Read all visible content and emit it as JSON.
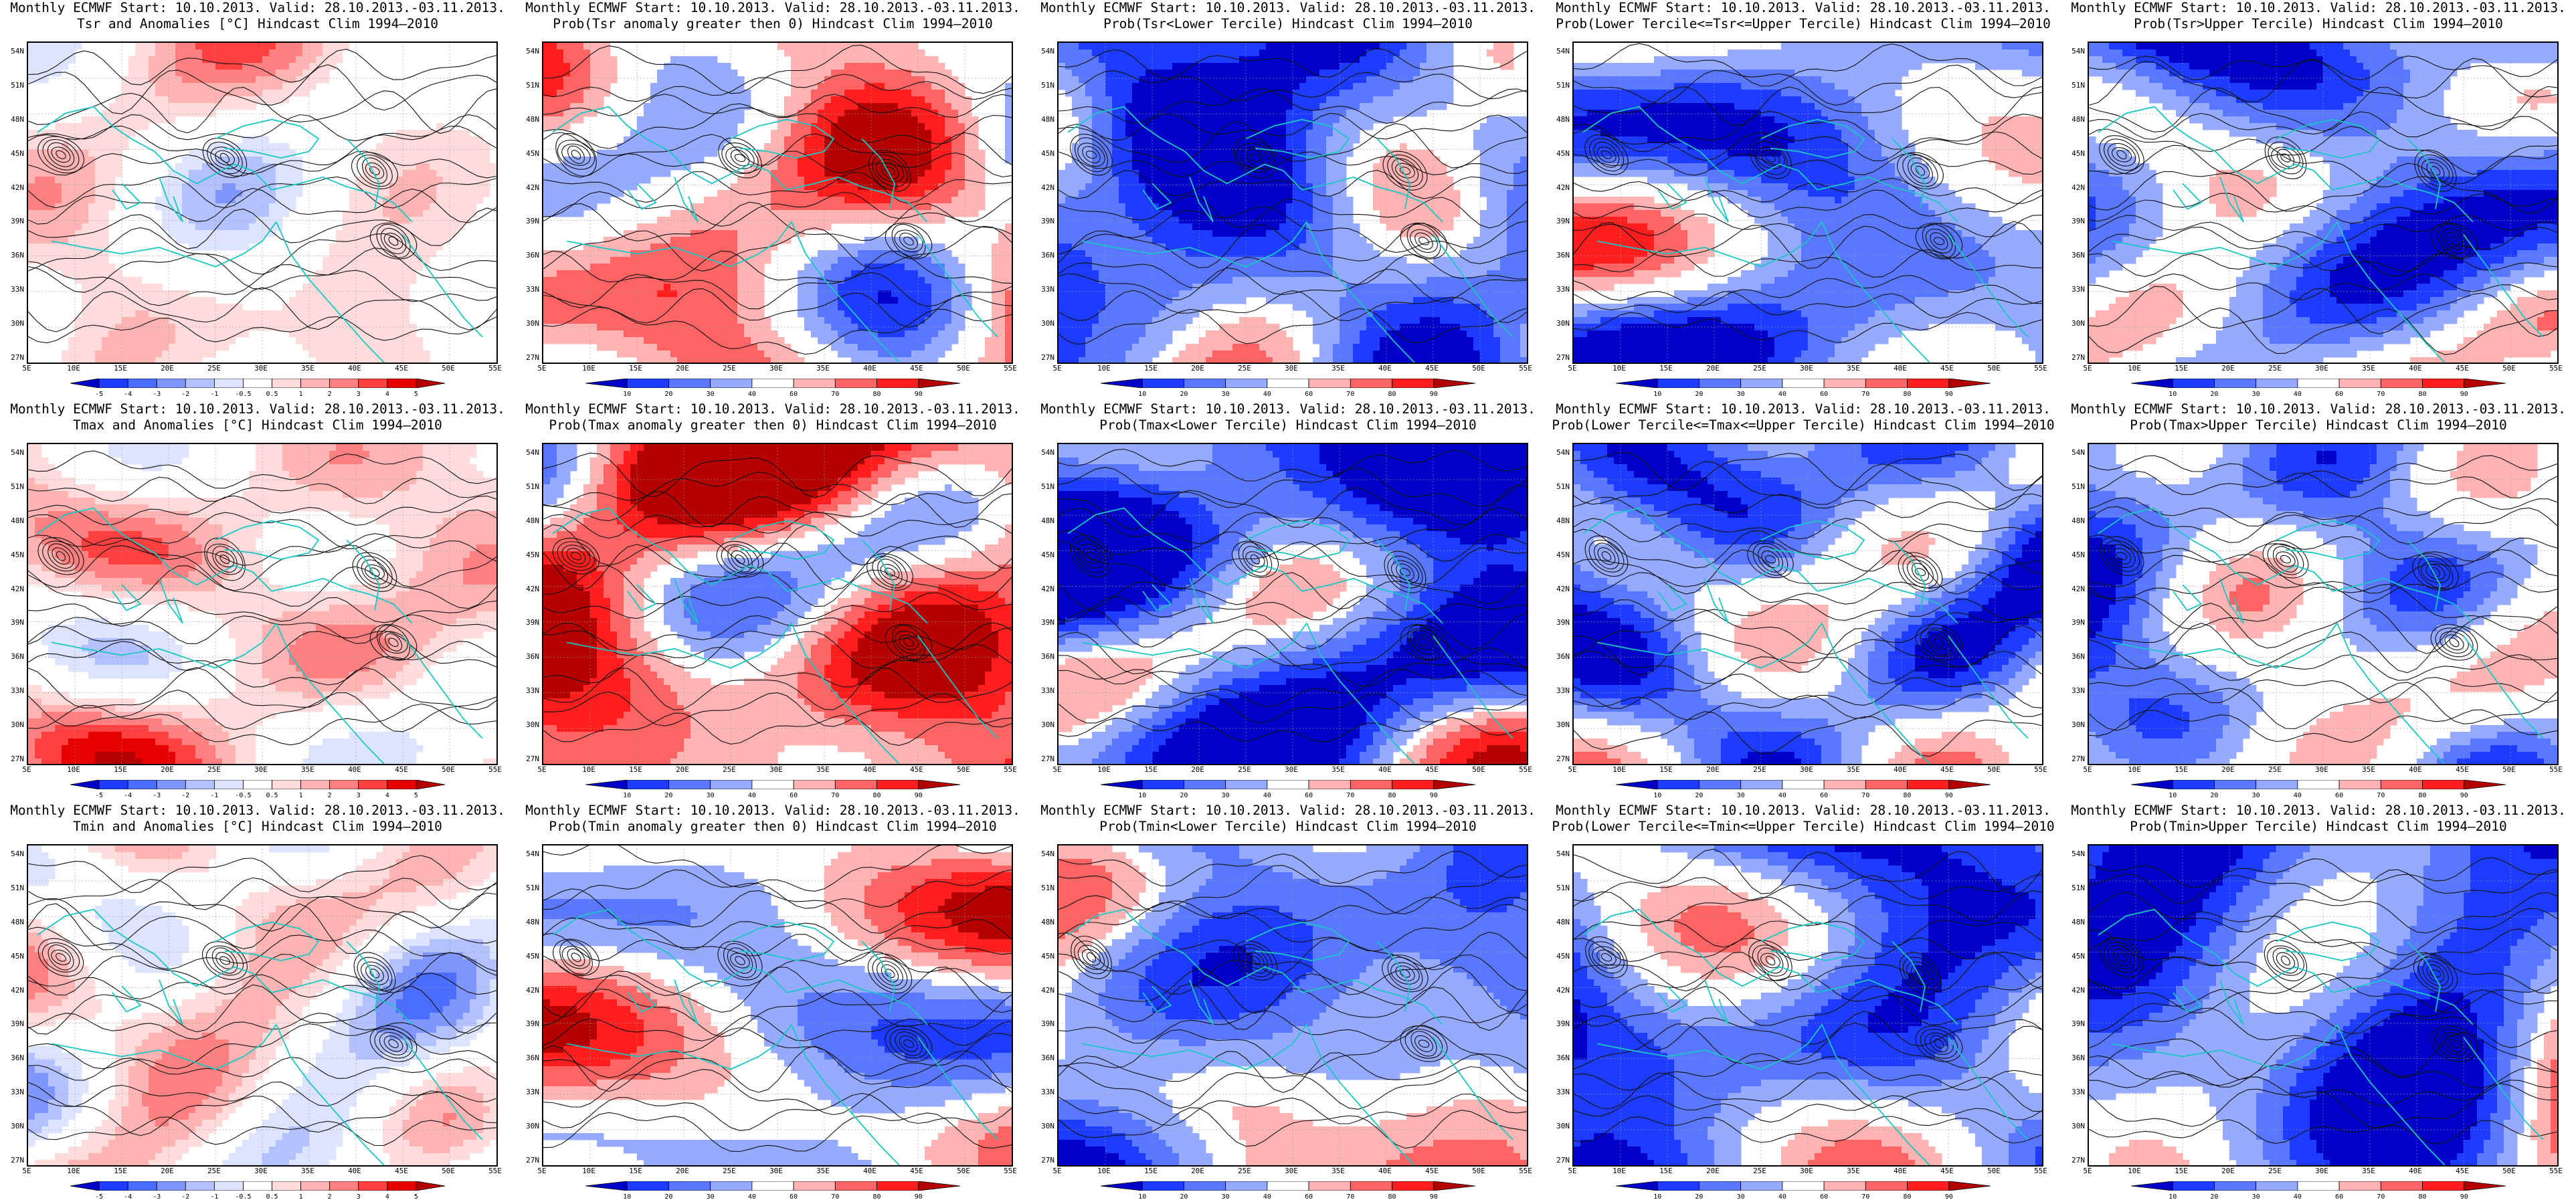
{
  "header_line": "Monthly ECMWF Start: 10.10.2013. Valid: 28.10.2013.-03.11.2013.",
  "lat_labels": [
    "54N",
    "51N",
    "48N",
    "45N",
    "42N",
    "39N",
    "36N",
    "33N",
    "30N",
    "27N"
  ],
  "lon_labels": [
    "5E",
    "10E",
    "15E",
    "20E",
    "25E",
    "30E",
    "35E",
    "40E",
    "45E",
    "50E",
    "55E"
  ],
  "scales": {
    "anom": {
      "labels": [
        "-5",
        "-4",
        "-3",
        "-2",
        "-1",
        "-0.5",
        "0.5",
        "1",
        "2",
        "3",
        "4",
        "5"
      ],
      "colors": [
        "#0000c8",
        "#1e3cff",
        "#4a6cff",
        "#7f96ff",
        "#b3c2ff",
        "#dde4ff",
        "#ffffff",
        "#ffdcdc",
        "#ffb4b4",
        "#ff8080",
        "#ff4040",
        "#e60000",
        "#b40000"
      ]
    },
    "prob": {
      "labels": [
        "10",
        "20",
        "30",
        "40",
        "60",
        "70",
        "80",
        "90"
      ],
      "colors": [
        "#0000c8",
        "#1e3cff",
        "#5a78ff",
        "#96aaff",
        "#ffffff",
        "#ffb4b4",
        "#ff6464",
        "#ff1e1e",
        "#b40000"
      ]
    }
  },
  "rows": [
    {
      "variable": "Tsr",
      "panels": [
        {
          "title2": "Tsr and Anomalies [°C] Hindcast Clim 1994–2010",
          "scale": "anom",
          "coverage": 0.45,
          "bias": 0.25
        },
        {
          "title2": "Prob(Tsr anomaly greater then 0) Hindcast Clim 1994–2010",
          "scale": "prob",
          "coverage": 0.65,
          "bias": 0.3
        },
        {
          "title2": "Prob(Tsr<Lower Tercile) Hindcast Clim 1994–2010",
          "scale": "prob",
          "coverage": 0.8,
          "bias": -0.7
        },
        {
          "title2": "Prob(Lower Tercile<=Tsr<=Upper Tercile) Hindcast Clim 1994–2010",
          "scale": "prob",
          "coverage": 0.6,
          "bias": -0.6
        },
        {
          "title2": "Prob(Tsr>Upper Tercile) Hindcast Clim 1994–2010",
          "scale": "prob",
          "coverage": 0.75,
          "bias": -0.55
        }
      ]
    },
    {
      "variable": "Tmax",
      "panels": [
        {
          "title2": "Tmax and Anomalies [°C] Hindcast Clim 1994–2010",
          "scale": "anom",
          "coverage": 0.5,
          "bias": 0.55
        },
        {
          "title2": "Prob(Tmax anomaly greater then 0) Hindcast Clim 1994–2010",
          "scale": "prob",
          "coverage": 0.75,
          "bias": 0.7
        },
        {
          "title2": "Prob(Tmax<Lower Tercile) Hindcast Clim 1994–2010",
          "scale": "prob",
          "coverage": 0.85,
          "bias": -0.85
        },
        {
          "title2": "Prob(Lower Tercile<=Tmax<=Upper Tercile) Hindcast Clim 1994–2010",
          "scale": "prob",
          "coverage": 0.6,
          "bias": -0.6
        },
        {
          "title2": "Prob(Tmax>Upper Tercile) Hindcast Clim 1994–2010",
          "scale": "prob",
          "coverage": 0.55,
          "bias": -0.45
        }
      ]
    },
    {
      "variable": "Tmin",
      "panels": [
        {
          "title2": "Tmin and Anomalies [°C] Hindcast Clim 1994–2010",
          "scale": "anom",
          "coverage": 0.55,
          "bias": 0.1
        },
        {
          "title2": "Prob(Tmin anomaly greater then 0) Hindcast Clim 1994–2010",
          "scale": "prob",
          "coverage": 0.75,
          "bias": 0.05
        },
        {
          "title2": "Prob(Tmin<Lower Tercile) Hindcast Clim 1994–2010",
          "scale": "prob",
          "coverage": 0.85,
          "bias": -0.3
        },
        {
          "title2": "Prob(Lower Tercile<=Tmin<=Upper Tercile) Hindcast Clim 1994–2010",
          "scale": "prob",
          "coverage": 0.65,
          "bias": -0.65
        },
        {
          "title2": "Prob(Tmin>Upper Tercile) Hindcast Clim 1994–2010",
          "scale": "prob",
          "coverage": 0.8,
          "bias": -0.6
        }
      ]
    }
  ]
}
